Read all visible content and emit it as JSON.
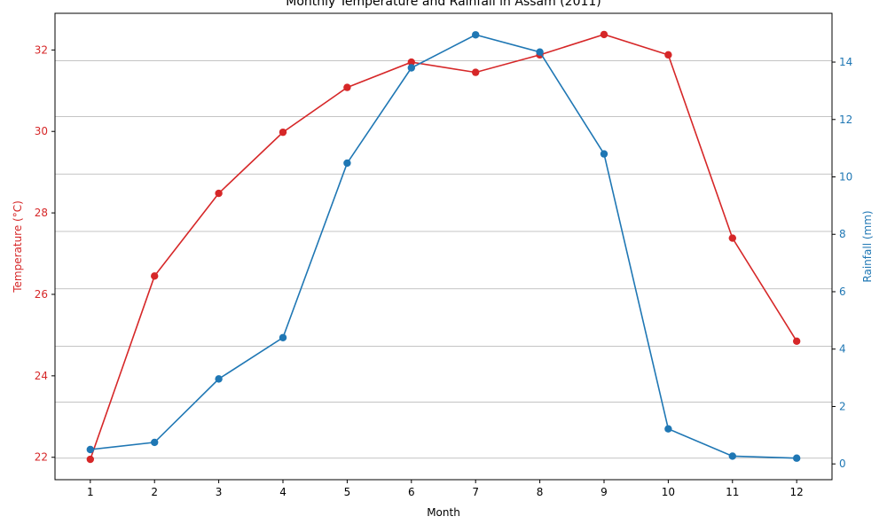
{
  "chart_data": {
    "type": "line",
    "title": "Monthly Temperature and Rainfall in Assam (2011)",
    "xlabel": "Month",
    "x": [
      1,
      2,
      3,
      4,
      5,
      6,
      7,
      8,
      9,
      10,
      11,
      12
    ],
    "xticks": [
      "1",
      "2",
      "3",
      "4",
      "5",
      "6",
      "7",
      "8",
      "9",
      "10",
      "11",
      "12"
    ],
    "series": [
      {
        "axis": "left",
        "color": "#d62728",
        "values": [
          21.95,
          26.45,
          28.48,
          29.98,
          31.08,
          31.7,
          31.45,
          31.88,
          32.38,
          31.88,
          27.38,
          24.85
        ]
      },
      {
        "axis": "right",
        "color": "#1f77b4",
        "values": [
          0.5,
          0.75,
          2.96,
          4.4,
          10.48,
          13.8,
          14.95,
          14.35,
          10.8,
          1.22,
          0.27,
          0.2
        ]
      }
    ],
    "left_axis": {
      "label": "Temperature (°C)",
      "color": "#d62728",
      "ylim": [
        21.45,
        32.9
      ],
      "ticks": [
        22,
        24,
        26,
        28,
        30,
        32
      ]
    },
    "right_axis": {
      "label": "Rainfall (mm)",
      "color": "#1f77b4",
      "ylim": [
        -0.55,
        15.7
      ],
      "ticks": [
        0,
        2,
        4,
        6,
        8,
        10,
        12,
        14
      ]
    },
    "grid": "horizontal, right axis",
    "gridlines": [
      0.2,
      2.15,
      4.1,
      6.1,
      8.1,
      10.1,
      12.1,
      14.05
    ],
    "legend": "none"
  }
}
